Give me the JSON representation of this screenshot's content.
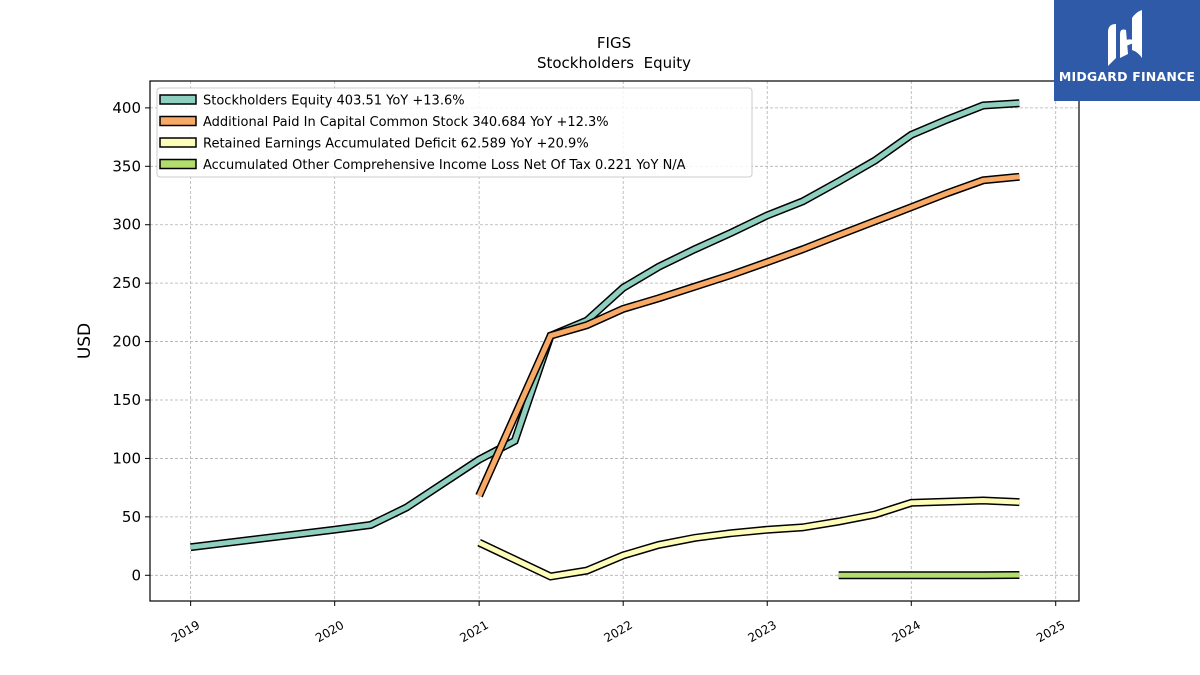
{
  "chart_data": {
    "type": "line",
    "title": "FIGS",
    "subtitle": "Stockholders  Equity",
    "ylabel": "USD",
    "xlabel": "",
    "ylim": [
      -22,
      423
    ],
    "xlim": [
      "2018-09-20",
      "2025-03-01"
    ],
    "yticks": [
      0,
      50,
      100,
      150,
      200,
      250,
      300,
      350,
      400
    ],
    "xticks": [
      "2019",
      "2020",
      "2021",
      "2022",
      "2023",
      "2024",
      "2025"
    ],
    "grid": true,
    "legend_position": "upper-left",
    "series": [
      {
        "name": "Stockholders Equity",
        "legend_label": "Stockholders Equity  403.51 YoY +13.6%",
        "color": "#8ecfc0",
        "points": [
          [
            "2019-01-01",
            24
          ],
          [
            "2020-01-01",
            39
          ],
          [
            "2020-04-01",
            43
          ],
          [
            "2020-07-01",
            58
          ],
          [
            "2021-01-01",
            99
          ],
          [
            "2021-04-01",
            115
          ],
          [
            "2021-07-01",
            205
          ],
          [
            "2021-10-01",
            218
          ],
          [
            "2022-01-01",
            246
          ],
          [
            "2022-04-01",
            264
          ],
          [
            "2022-07-01",
            279
          ],
          [
            "2022-10-01",
            293
          ],
          [
            "2023-01-01",
            308
          ],
          [
            "2023-04-01",
            320
          ],
          [
            "2023-07-01",
            337
          ],
          [
            "2023-10-01",
            355
          ],
          [
            "2024-01-01",
            377
          ],
          [
            "2024-04-01",
            390
          ],
          [
            "2024-07-01",
            402
          ],
          [
            "2024-10-01",
            404
          ]
        ]
      },
      {
        "name": "Additional Paid In Capital Common Stock",
        "legend_label": "Additional Paid In Capital Common Stock  340.684 YoY +12.3%",
        "color": "#f7a965",
        "points": [
          [
            "2021-01-01",
            68
          ],
          [
            "2021-07-01",
            205
          ],
          [
            "2021-10-01",
            214
          ],
          [
            "2022-01-01",
            228
          ],
          [
            "2022-04-01",
            237
          ],
          [
            "2022-07-01",
            247
          ],
          [
            "2022-10-01",
            257
          ],
          [
            "2023-01-01",
            268
          ],
          [
            "2023-04-01",
            279
          ],
          [
            "2023-07-01",
            291
          ],
          [
            "2023-10-01",
            303
          ],
          [
            "2024-01-01",
            315
          ],
          [
            "2024-04-01",
            327
          ],
          [
            "2024-07-01",
            338
          ],
          [
            "2024-10-01",
            341
          ]
        ]
      },
      {
        "name": "Retained Earnings Accumulated Deficit",
        "legend_label": "Retained Earnings Accumulated Deficit  62.589 YoY +20.9%",
        "color": "#fdfdb7",
        "points": [
          [
            "2021-01-01",
            28
          ],
          [
            "2021-07-01",
            -1
          ],
          [
            "2021-10-01",
            4
          ],
          [
            "2022-01-01",
            17
          ],
          [
            "2022-04-01",
            26
          ],
          [
            "2022-07-01",
            32
          ],
          [
            "2022-10-01",
            36
          ],
          [
            "2023-01-01",
            39
          ],
          [
            "2023-04-01",
            41
          ],
          [
            "2023-07-01",
            46
          ],
          [
            "2023-10-01",
            52
          ],
          [
            "2024-01-01",
            62
          ],
          [
            "2024-07-01",
            64
          ],
          [
            "2024-10-01",
            62.6
          ]
        ]
      },
      {
        "name": "Accumulated Other Comprehensive Income Loss Net Of Tax",
        "legend_label": "Accumulated Other Comprehensive Income Loss Net Of Tax  0.221 YoY N/A",
        "color": "#b2dc6b",
        "points": [
          [
            "2023-07-01",
            0
          ],
          [
            "2023-10-01",
            0
          ],
          [
            "2024-01-01",
            0
          ],
          [
            "2024-04-01",
            0
          ],
          [
            "2024-07-01",
            0
          ],
          [
            "2024-10-01",
            0.221
          ]
        ]
      }
    ]
  },
  "logo": {
    "text": "MIDGARD FINANCE",
    "color": "#2e5aa8"
  }
}
